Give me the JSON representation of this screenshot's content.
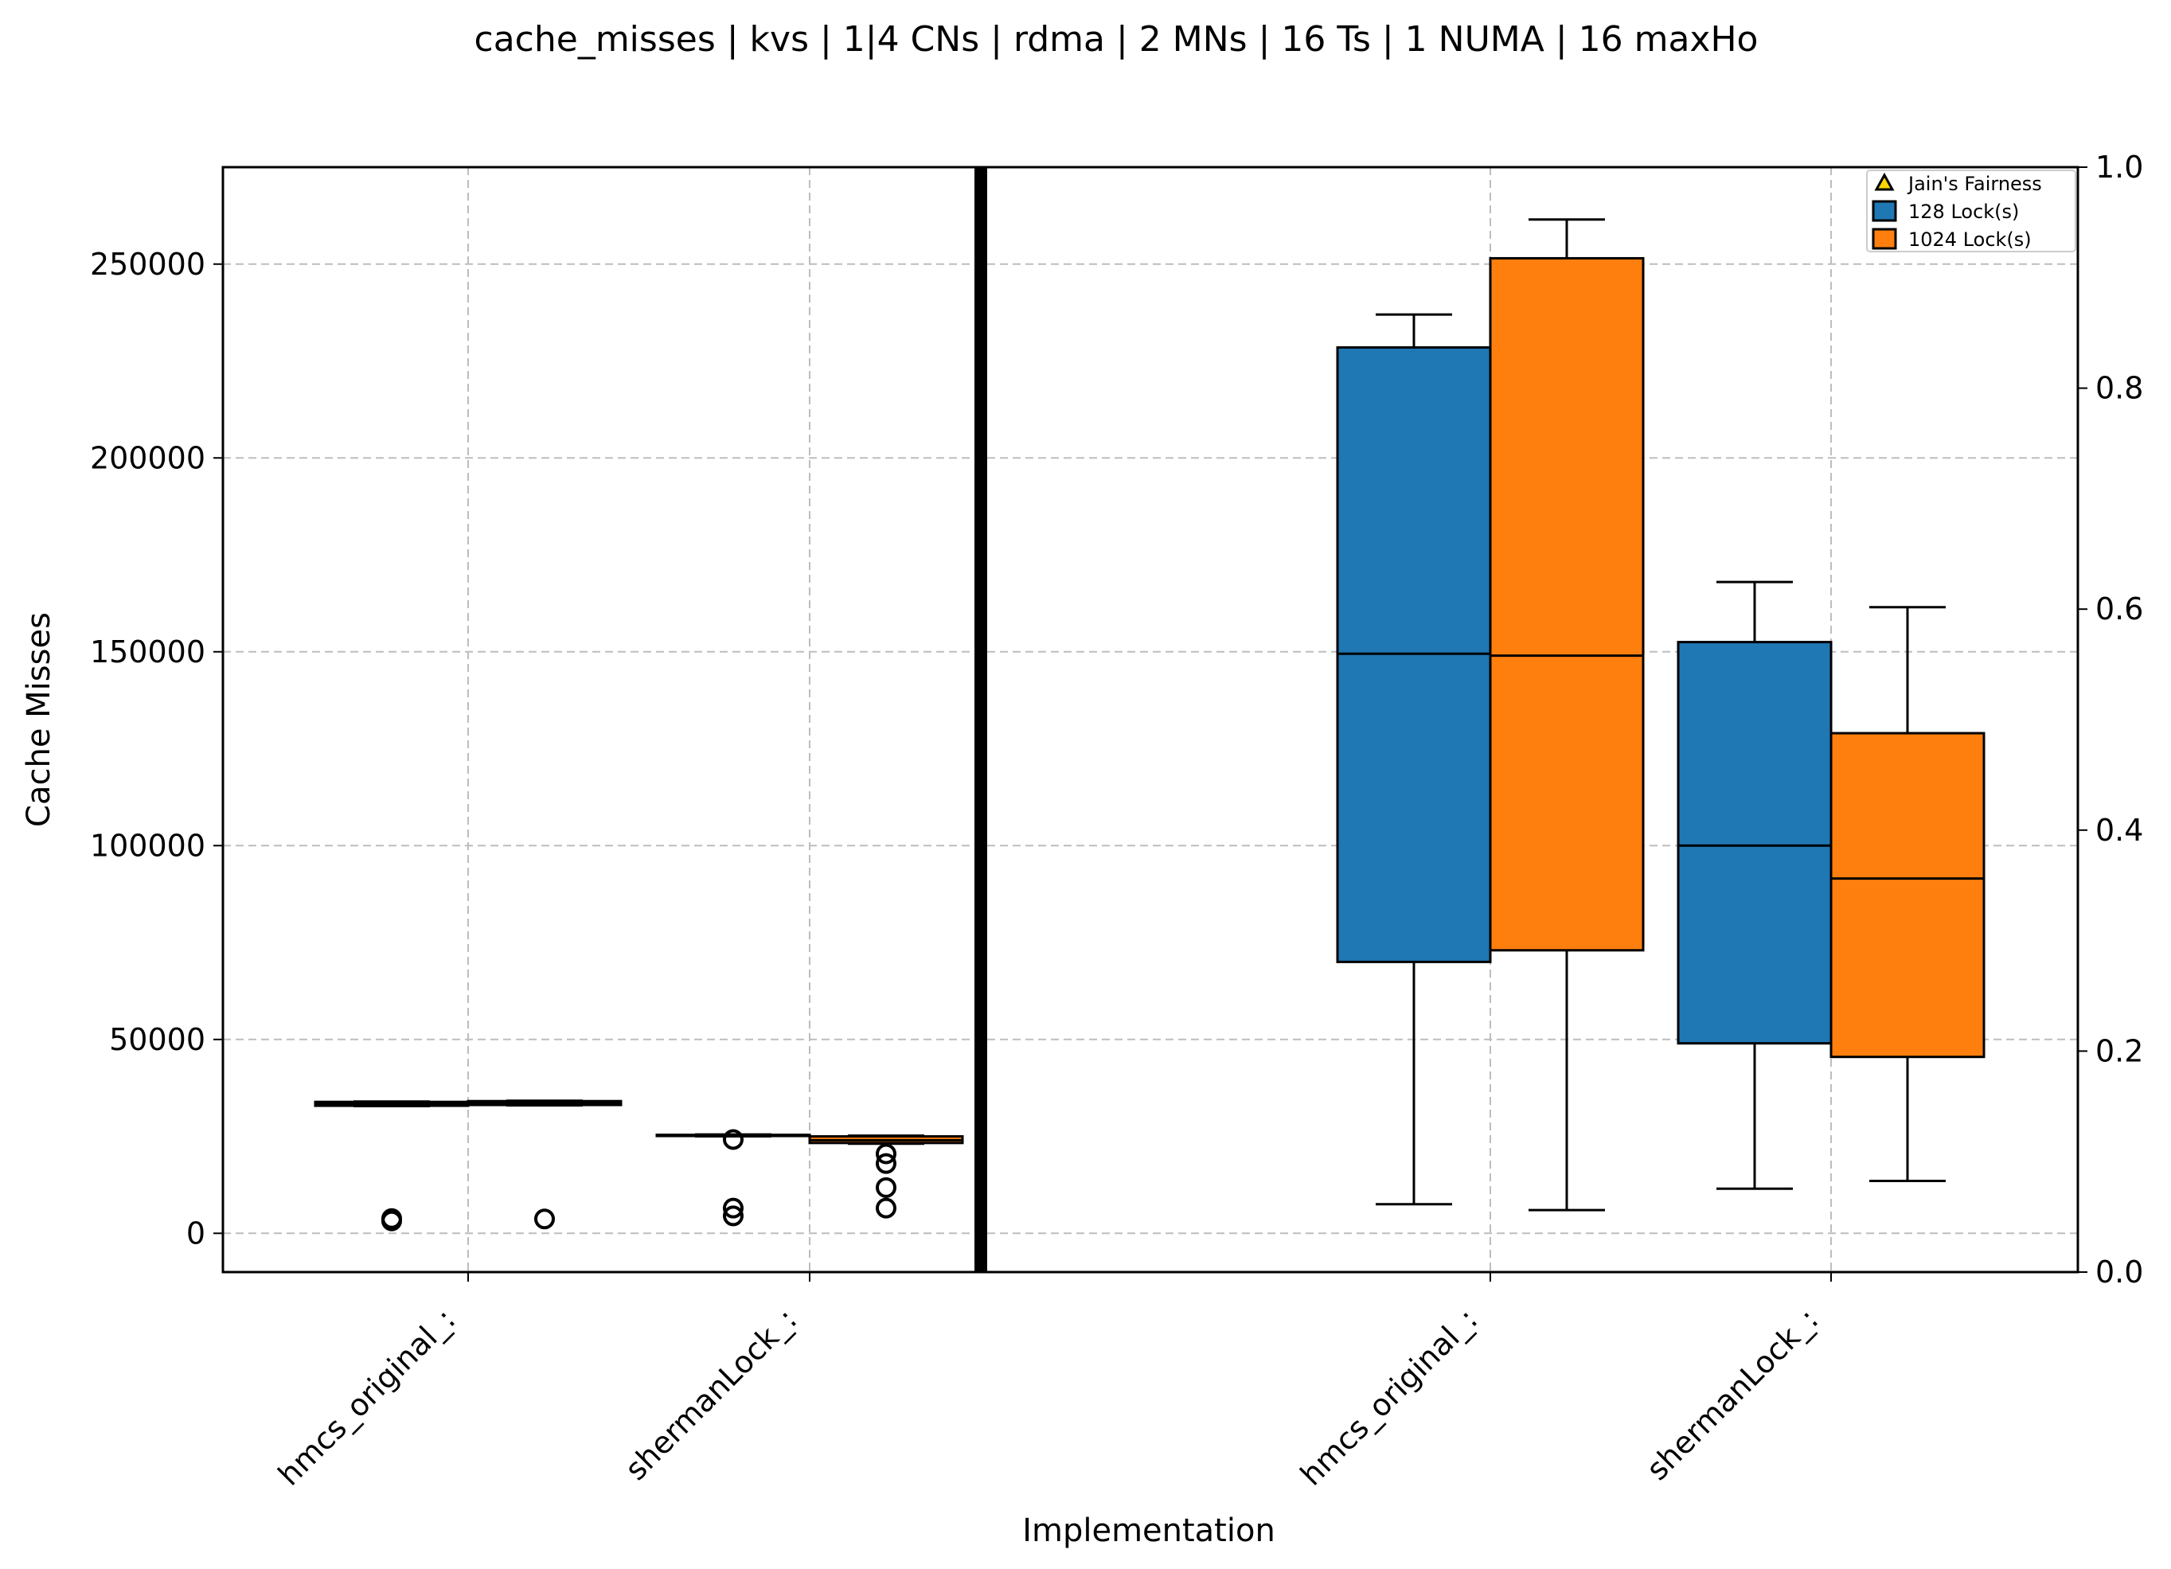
{
  "chart_data": {
    "type": "boxplot",
    "title": "cache_misses | kvs | 1|4 CNs | rdma | 2 MNs | 16 Ts | 1 NUMA | 16 maxHo",
    "xlabel": "Implementation",
    "ylabel": "Cache Misses",
    "ylim": [
      -10000,
      275000
    ],
    "yticks": [
      "0",
      "50000",
      "100000",
      "150000",
      "200000",
      "250000"
    ],
    "y2lim": [
      0.0,
      1.0
    ],
    "y2ticks": [
      "0.0",
      "0.2",
      "0.4",
      "0.6",
      "0.8",
      "1.0"
    ],
    "grid": true,
    "legend_position": "top-right",
    "legend": [
      {
        "label": "Jain's Fairness",
        "color": "#ffd700",
        "marker": "triangle"
      },
      {
        "label": "128 Lock(s)",
        "color": "#1f77b4",
        "marker": "square"
      },
      {
        "label": "1024 Lock(s)",
        "color": "#ff7f0e",
        "marker": "square"
      }
    ],
    "panels": [
      {
        "name": "left",
        "categories": [
          "hmcs_original_:",
          "shermanLock_:"
        ],
        "boxes": [
          {
            "category": 0,
            "series": "128 Lock(s)",
            "whislo": 32800,
            "q1": 32900,
            "med": 33400,
            "q3": 33900,
            "whishi": 34000,
            "fliers": [
              3200,
              3800
            ]
          },
          {
            "category": 0,
            "series": "1024 Lock(s)",
            "whislo": 33000,
            "q1": 33100,
            "med": 33600,
            "q3": 34100,
            "whishi": 34200,
            "fliers": [
              3700
            ]
          },
          {
            "category": 1,
            "series": "128 Lock(s)",
            "whislo": 25000,
            "q1": 25100,
            "med": 25200,
            "q3": 25400,
            "whishi": 25500,
            "fliers": [
              24200,
              6500,
              4500
            ]
          },
          {
            "category": 1,
            "series": "1024 Lock(s)",
            "whislo": 23100,
            "q1": 23300,
            "med": 24000,
            "q3": 25000,
            "whishi": 25200,
            "fliers": [
              20500,
              18000,
              11800,
              6500
            ]
          }
        ]
      },
      {
        "name": "right",
        "categories": [
          "hmcs_original_:",
          "shermanLock_:"
        ],
        "boxes": [
          {
            "category": 0,
            "series": "128 Lock(s)",
            "whislo": 7500,
            "q1": 70000,
            "med": 149500,
            "q3": 228500,
            "whishi": 237000,
            "fliers": []
          },
          {
            "category": 0,
            "series": "1024 Lock(s)",
            "whislo": 6000,
            "q1": 73000,
            "med": 149000,
            "q3": 251500,
            "whishi": 261500,
            "fliers": []
          },
          {
            "category": 1,
            "series": "128 Lock(s)",
            "whislo": 11500,
            "q1": 49000,
            "med": 100000,
            "q3": 152500,
            "whishi": 168000,
            "fliers": []
          },
          {
            "category": 1,
            "series": "1024 Lock(s)",
            "whislo": 13500,
            "q1": 45500,
            "med": 91500,
            "q3": 129000,
            "whishi": 161500,
            "fliers": []
          }
        ]
      }
    ]
  }
}
